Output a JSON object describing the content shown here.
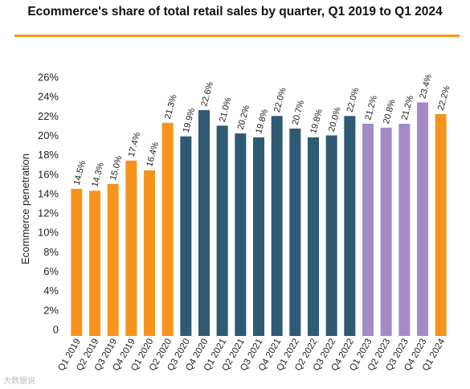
{
  "chart_data": {
    "type": "bar",
    "title": "Ecommerce's share of total retail sales by quarter, Q1 2019 to Q1 2024",
    "ylabel": "Ecommerce penetration",
    "xlabel": "",
    "ylim": [
      0,
      26
    ],
    "y_ticks": [
      "0",
      "2%",
      "4%",
      "6%",
      "8%",
      "10%",
      "12%",
      "14%",
      "16%",
      "18%",
      "20%",
      "22%",
      "24%",
      "26%"
    ],
    "y_tick_values": [
      0,
      2,
      4,
      6,
      8,
      10,
      12,
      14,
      16,
      18,
      20,
      22,
      24,
      26
    ],
    "grid": false,
    "categories": [
      "Q1 2019",
      "Q2 2019",
      "Q3 2019",
      "Q4 2019",
      "Q1 2020",
      "Q2 2020",
      "Q3 2020",
      "Q4 2020",
      "Q1 2021",
      "Q2 2021",
      "Q3 2021",
      "Q4 2021",
      "Q1 2022",
      "Q2 2022",
      "Q3 2022",
      "Q4 2022",
      "Q1 2023",
      "Q2 2023",
      "Q3 2023",
      "Q4 2023",
      "Q1 2024"
    ],
    "values": [
      14.5,
      14.3,
      15.0,
      17.4,
      16.4,
      21.3,
      19.9,
      22.6,
      21.0,
      20.2,
      19.8,
      22.0,
      20.7,
      19.8,
      20.0,
      22.0,
      21.2,
      20.8,
      21.2,
      23.4,
      22.2
    ],
    "data_labels": [
      "14.5%",
      "14.3%",
      "15.0%",
      "17.4%",
      "16.4%",
      "21.3%",
      "19.9%",
      "22.6%",
      "21.0%",
      "20.2%",
      "19.8%",
      "22.0%",
      "20.7%",
      "19.8%",
      "20.0%",
      "22.0%",
      "21.2%",
      "20.8%",
      "21.2%",
      "23.4%",
      "22.2%"
    ],
    "bar_colors": [
      "#F7941D",
      "#F7941D",
      "#F7941D",
      "#F7941D",
      "#F7941D",
      "#F7941D",
      "#2E5A73",
      "#2E5A73",
      "#2E5A73",
      "#2E5A73",
      "#2E5A73",
      "#2E5A73",
      "#2E5A73",
      "#2E5A73",
      "#2E5A73",
      "#2E5A73",
      "#A48BC6",
      "#A48BC6",
      "#A48BC6",
      "#A48BC6",
      "#F7941D"
    ]
  },
  "colors": {
    "title_rule": "#F7941D"
  },
  "watermark": "大数据说"
}
